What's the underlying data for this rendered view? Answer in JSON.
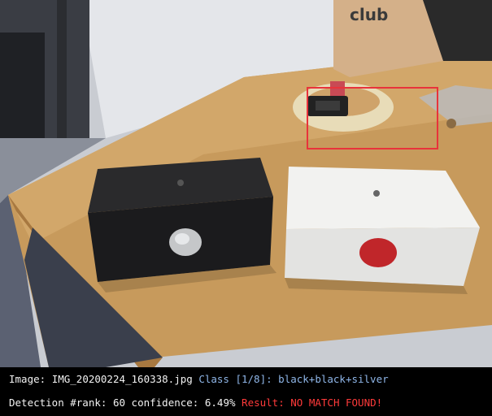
{
  "info": {
    "image_label": "Image:",
    "image_name": "IMG_20200224_160338.jpg",
    "class_label": "Class",
    "class_index": "[1/8]:",
    "class_value": "black+black+silver",
    "detection_label": "Detection #rank:",
    "rank": "60",
    "confidence_label": "confidence:",
    "confidence": "6.49%",
    "result_label": "Result:",
    "result_value": "NO MATCH FOUND!"
  },
  "photo": {
    "box_text_top": "club",
    "colors": {
      "detection_box": "#e8333b",
      "class_text": "#8fb6e8",
      "result_text": "#ff3a3a"
    }
  }
}
